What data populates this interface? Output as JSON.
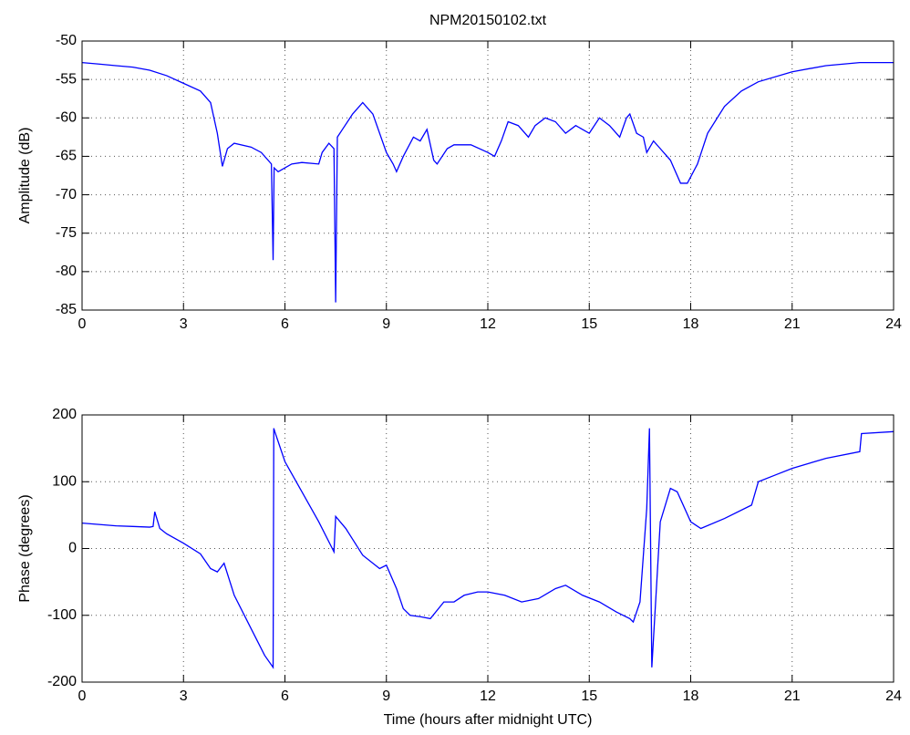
{
  "chart_data": [
    {
      "type": "line",
      "title": "NPM20150102.txt",
      "y_label": "Amplitude (dB)",
      "xlim": [
        0,
        24
      ],
      "xticks": [
        0,
        3,
        6,
        9,
        12,
        15,
        18,
        21,
        24
      ],
      "ylim": [
        -85,
        -50
      ],
      "yticks": [
        -85,
        -80,
        -75,
        -70,
        -65,
        -60,
        -55,
        -50
      ],
      "grid": true,
      "series": [
        {
          "color": "#0000ff",
          "x": [
            0,
            0.5,
            1,
            1.5,
            2,
            2.5,
            3,
            3.5,
            3.8,
            4.0,
            4.15,
            4.3,
            4.5,
            5,
            5.3,
            5.6,
            5.65,
            5.68,
            5.8,
            6,
            6.2,
            6.5,
            7,
            7.1,
            7.3,
            7.45,
            7.5,
            7.55,
            7.7,
            8,
            8.3,
            8.6,
            9,
            9.2,
            9.3,
            9.5,
            9.8,
            10,
            10.2,
            10.4,
            10.5,
            10.8,
            11,
            11.5,
            12,
            12.2,
            12.4,
            12.6,
            12.9,
            13.2,
            13.4,
            13.7,
            14,
            14.3,
            14.6,
            15,
            15.3,
            15.6,
            15.9,
            16.1,
            16.2,
            16.4,
            16.6,
            16.7,
            16.9,
            17.1,
            17.4,
            17.7,
            17.9,
            18.2,
            18.5,
            19,
            19.5,
            20,
            21,
            22,
            23,
            24
          ],
          "values": [
            -52.8,
            -53,
            -53.2,
            -53.4,
            -53.8,
            -54.5,
            -55.5,
            -56.5,
            -58,
            -62,
            -66.3,
            -64,
            -63.3,
            -63.8,
            -64.5,
            -66,
            -78.5,
            -66.5,
            -67,
            -66.5,
            -66,
            -65.8,
            -66,
            -64.5,
            -63.3,
            -64,
            -84,
            -62.5,
            -61.5,
            -59.5,
            -58,
            -59.5,
            -64.5,
            -66,
            -67,
            -65,
            -62.5,
            -63,
            -61.5,
            -65.5,
            -66,
            -64,
            -63.5,
            -63.5,
            -64.5,
            -65,
            -63,
            -60.5,
            -61,
            -62.5,
            -61,
            -60,
            -60.5,
            -62,
            -61,
            -62,
            -60,
            -61,
            -62.5,
            -60,
            -59.5,
            -62,
            -62.5,
            -64.5,
            -63,
            -64,
            -65.5,
            -68.5,
            -68.5,
            -66,
            -62,
            -58.5,
            -56.5,
            -55.3,
            -54,
            -53.2,
            -52.8,
            -52.8
          ]
        }
      ]
    },
    {
      "type": "line",
      "x_label": "Time (hours after midnight UTC)",
      "y_label": "Phase (degrees)",
      "xlim": [
        0,
        24
      ],
      "xticks": [
        0,
        3,
        6,
        9,
        12,
        15,
        18,
        21,
        24
      ],
      "ylim": [
        -200,
        200
      ],
      "yticks": [
        -200,
        -100,
        0,
        100,
        200
      ],
      "grid": true,
      "series": [
        {
          "color": "#0000ff",
          "x": [
            0,
            0.5,
            1,
            1.5,
            2,
            2.1,
            2.15,
            2.3,
            2.5,
            3,
            3.5,
            3.8,
            4,
            4.2,
            4.5,
            5,
            5.4,
            5.65,
            5.67,
            5.7,
            6,
            6.5,
            7,
            7.4,
            7.45,
            7.5,
            7.8,
            8.3,
            8.8,
            9,
            9.3,
            9.5,
            9.7,
            10,
            10.3,
            10.7,
            11,
            11.3,
            11.7,
            12,
            12.5,
            13,
            13.5,
            14,
            14.3,
            14.8,
            15.3,
            15.8,
            16.2,
            16.3,
            16.5,
            16.7,
            16.78,
            16.85,
            17.1,
            17.4,
            17.6,
            18,
            18.3,
            19,
            19.8,
            20,
            20.5,
            21,
            22,
            23,
            23.05,
            24
          ],
          "values": [
            38,
            36,
            34,
            33,
            32,
            33,
            55,
            30,
            22,
            8,
            -8,
            -30,
            -35,
            -22,
            -70,
            -120,
            -160,
            -178,
            180,
            175,
            130,
            85,
            40,
            0,
            -5,
            48,
            30,
            -10,
            -30,
            -25,
            -60,
            -90,
            -100,
            -102,
            -105,
            -80,
            -80,
            -70,
            -65,
            -65,
            -70,
            -80,
            -75,
            -60,
            -55,
            -70,
            -80,
            -95,
            -105,
            -110,
            -80,
            60,
            180,
            -178,
            40,
            90,
            85,
            40,
            30,
            45,
            65,
            100,
            110,
            120,
            135,
            145,
            172,
            175
          ]
        }
      ]
    }
  ]
}
